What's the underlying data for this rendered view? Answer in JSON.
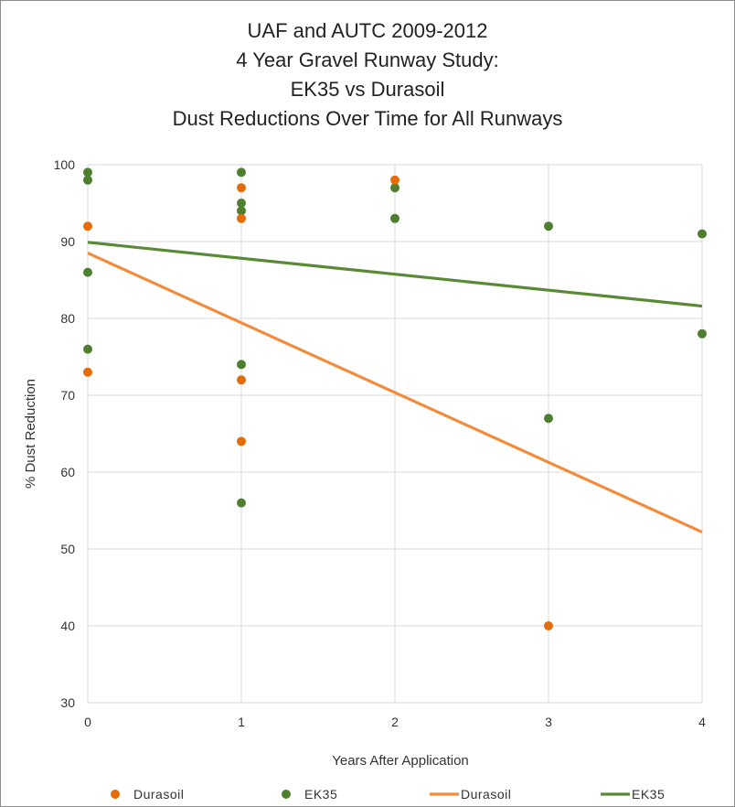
{
  "chart_data": {
    "type": "scatter",
    "title_lines": [
      "UAF and AUTC 2009-2012",
      "4 Year Gravel Runway Study:",
      "EK35 vs Durasoil",
      "Dust Reductions Over Time for All Runways"
    ],
    "xlabel": "Years After Application",
    "ylabel": "% Dust Reduction",
    "xlim": [
      0,
      4
    ],
    "ylim": [
      30,
      100
    ],
    "x_ticks": [
      0,
      1,
      2,
      3,
      4
    ],
    "y_ticks": [
      30,
      40,
      50,
      60,
      70,
      80,
      90,
      100
    ],
    "grid": true,
    "legend_position": "bottom",
    "series": [
      {
        "name": "Durasoil",
        "kind": "points",
        "color": "#E46C0A",
        "points": [
          [
            0,
            92
          ],
          [
            0,
            73
          ],
          [
            1,
            97
          ],
          [
            1,
            93
          ],
          [
            1,
            72
          ],
          [
            1,
            64
          ],
          [
            2,
            98
          ],
          [
            3,
            40
          ]
        ]
      },
      {
        "name": "EK35",
        "kind": "points",
        "color": "#4E7F2F",
        "points": [
          [
            0,
            99
          ],
          [
            0,
            98
          ],
          [
            0,
            86
          ],
          [
            0,
            76
          ],
          [
            1,
            99
          ],
          [
            1,
            95
          ],
          [
            1,
            94
          ],
          [
            1,
            74
          ],
          [
            1,
            56
          ],
          [
            2,
            97
          ],
          [
            2,
            93
          ],
          [
            3,
            92
          ],
          [
            3,
            67
          ],
          [
            4,
            91
          ],
          [
            4,
            78
          ]
        ]
      },
      {
        "name": "Durasoil",
        "kind": "trendline",
        "color": "#F28C3C",
        "points": [
          [
            0,
            88.5
          ],
          [
            4,
            52.2
          ]
        ]
      },
      {
        "name": "EK35",
        "kind": "trendline",
        "color": "#5A8A36",
        "points": [
          [
            0,
            89.9
          ],
          [
            4,
            81.6
          ]
        ]
      }
    ]
  }
}
